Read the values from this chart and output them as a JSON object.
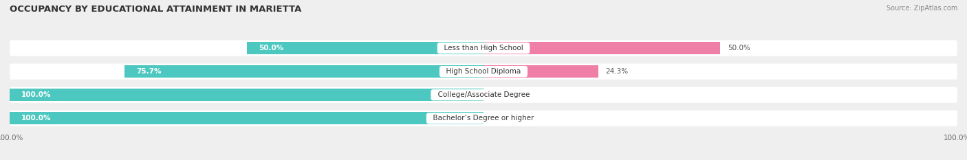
{
  "title": "OCCUPANCY BY EDUCATIONAL ATTAINMENT IN MARIETTA",
  "source": "Source: ZipAtlas.com",
  "categories": [
    "Less than High School",
    "High School Diploma",
    "College/Associate Degree",
    "Bachelor’s Degree or higher"
  ],
  "owner_values": [
    50.0,
    75.7,
    100.0,
    100.0
  ],
  "renter_values": [
    50.0,
    24.3,
    0.0,
    0.0
  ],
  "owner_color": "#4DC8C0",
  "renter_color": "#F07FA8",
  "background_color": "#EFEFEF",
  "bar_background": "#FFFFFF",
  "title_fontsize": 9.5,
  "label_fontsize": 7.5,
  "tick_fontsize": 7.5,
  "legend_fontsize": 8,
  "bar_height": 0.52
}
